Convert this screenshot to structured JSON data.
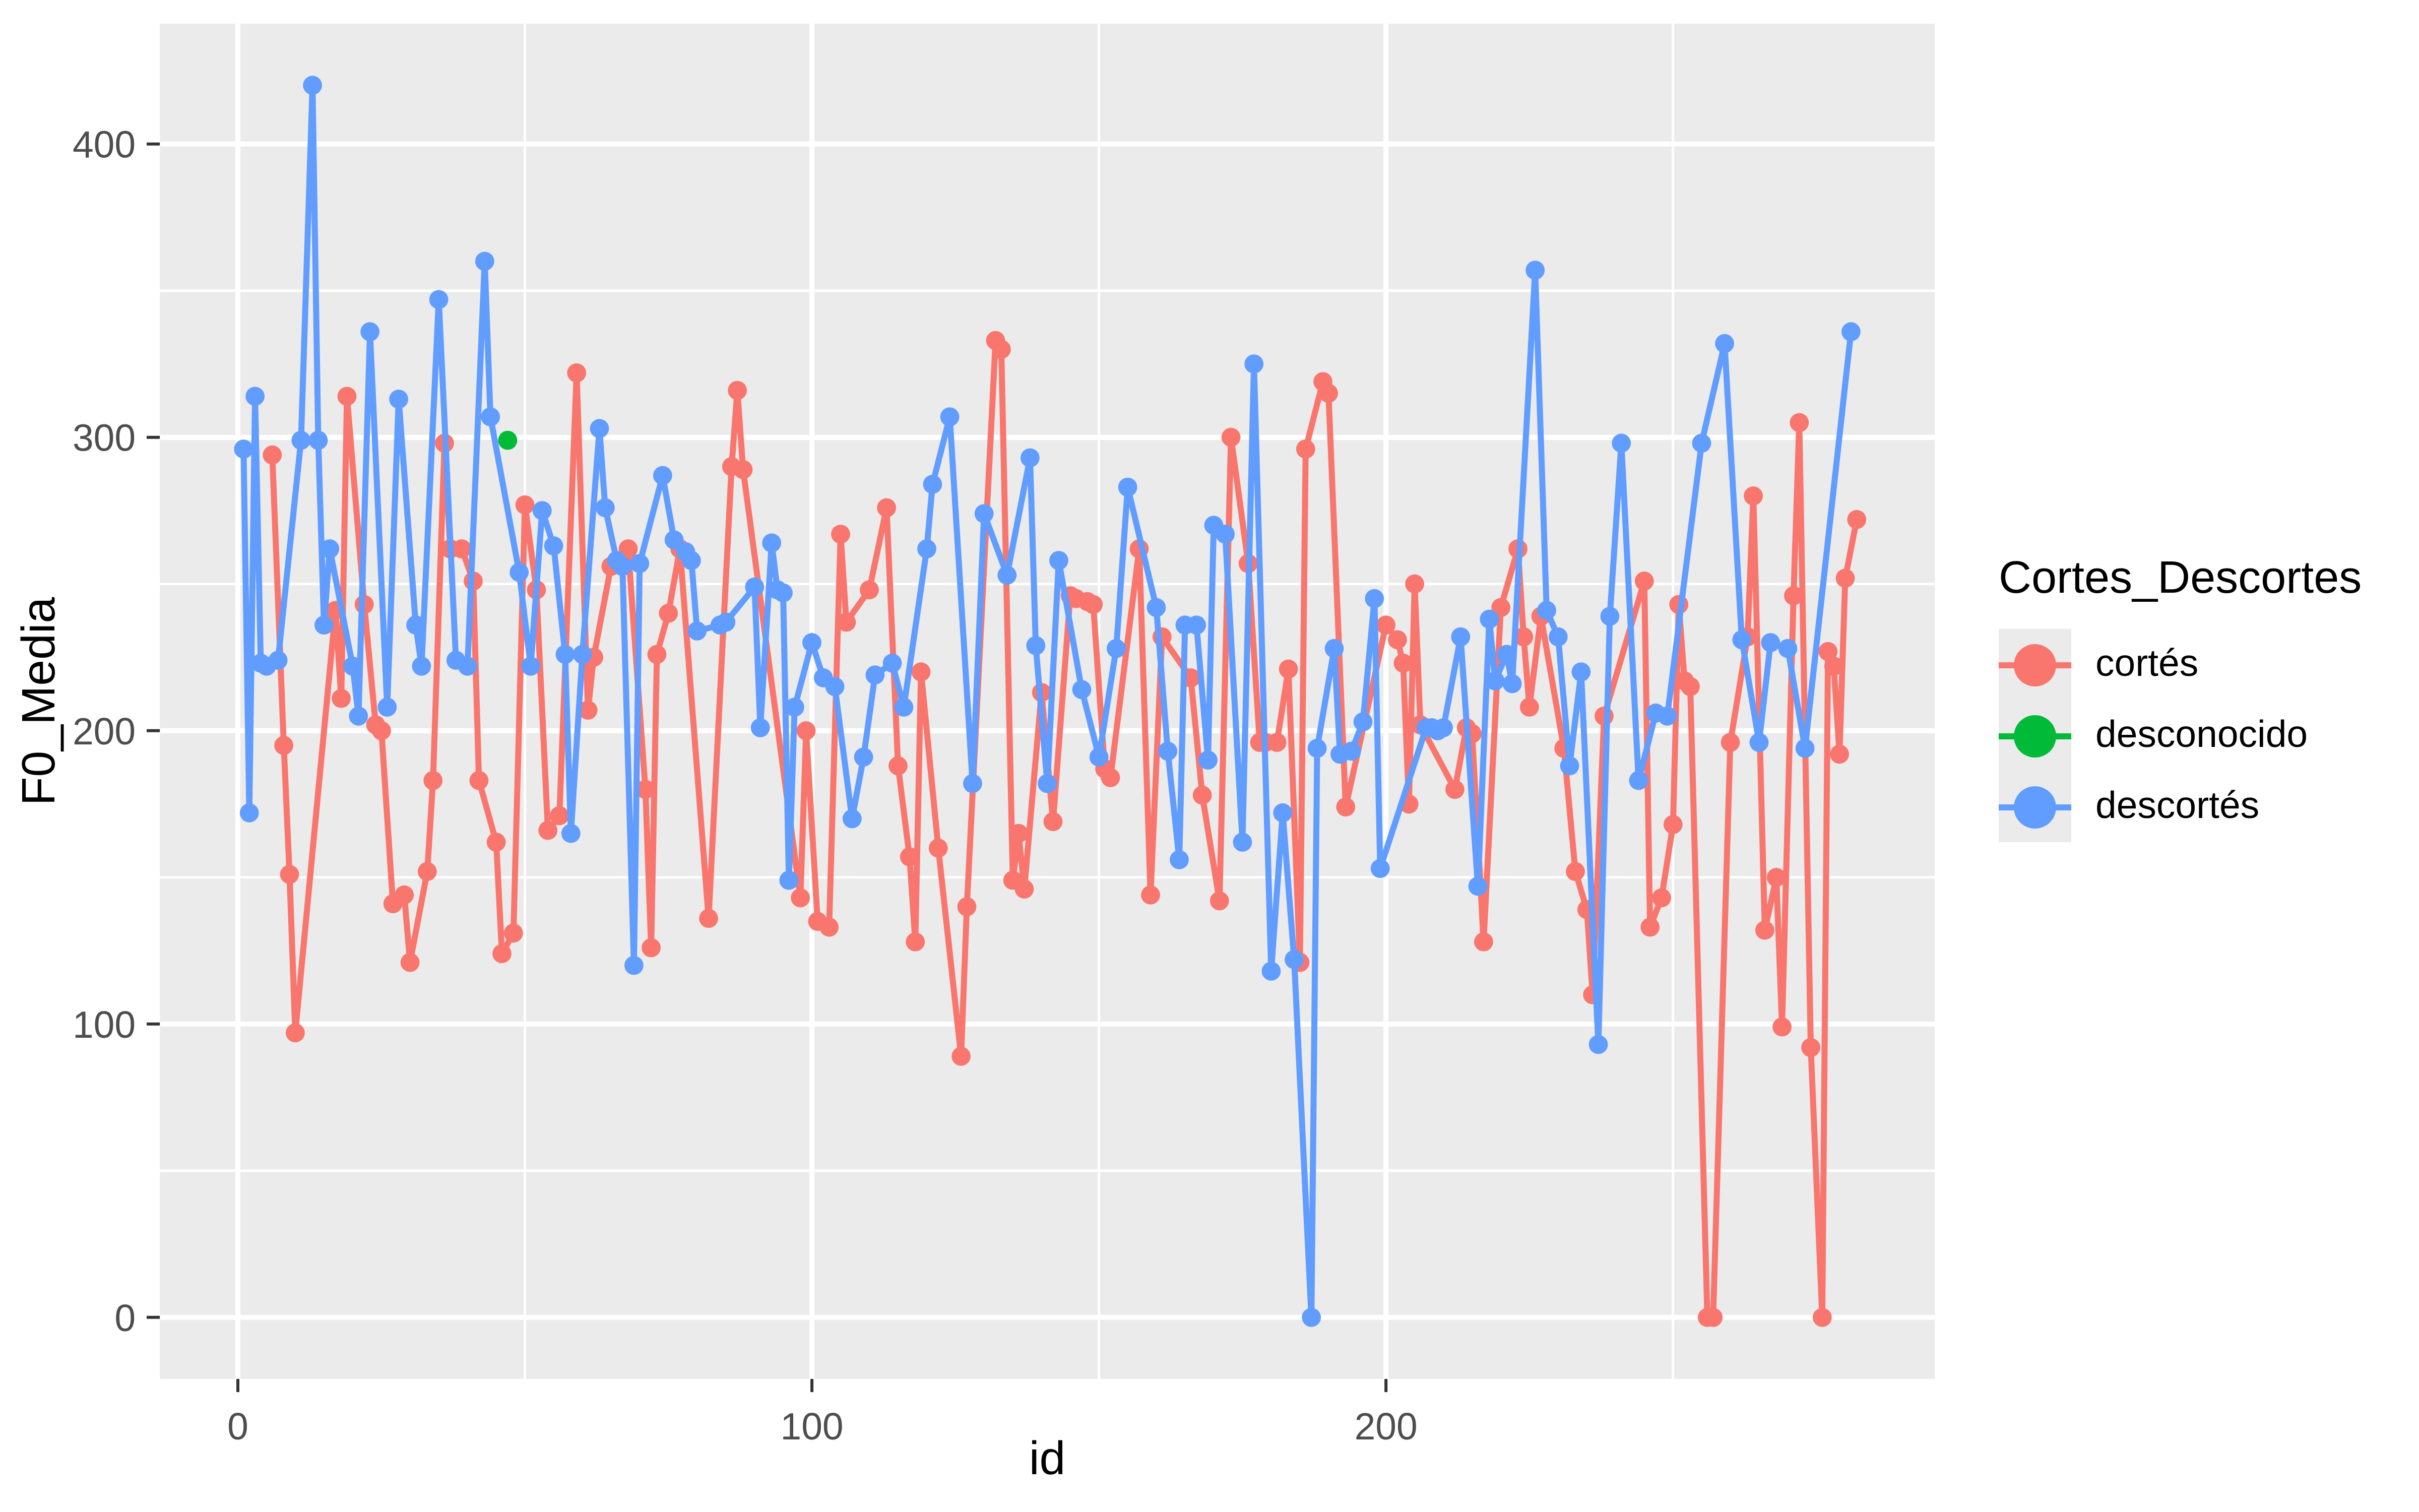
{
  "figure": {
    "background": "#FFFFFF",
    "panel_background": "#EBEBEB",
    "grid_color": "#FFFFFF",
    "tick_label_color": "#4D4D4D",
    "axis_title_color": "#000000"
  },
  "legend": {
    "title": "Cortes_Descortes",
    "entries": [
      {
        "label": "cortés",
        "color": "#F8766D"
      },
      {
        "label": "desconocido",
        "color": "#00BA38"
      },
      {
        "label": "descortés",
        "color": "#619CFF"
      }
    ]
  },
  "chart_data": {
    "type": "line",
    "title": "",
    "xlabel": "id",
    "ylabel": "F0_Media",
    "x_ticks": [
      0,
      100,
      200
    ],
    "y_ticks": [
      0,
      100,
      200,
      300,
      400
    ],
    "x_minor_ticks": [
      50,
      150,
      250
    ],
    "y_minor_ticks": [
      50,
      150,
      250,
      350
    ],
    "xlim": [
      -13.6,
      295.6
    ],
    "ylim": [
      -21,
      441
    ],
    "grid": true,
    "legend_position": "right",
    "legend_title": "Cortes_Descortes",
    "series": [
      {
        "name": "cortés",
        "color": "#F8766D",
        "points": [
          [
            6,
            294
          ],
          [
            8,
            195
          ],
          [
            9,
            151
          ],
          [
            10,
            97
          ],
          [
            17,
            241
          ],
          [
            18,
            211
          ],
          [
            19,
            314
          ],
          [
            22,
            243
          ],
          [
            24,
            202
          ],
          [
            25,
            200
          ],
          [
            27,
            141
          ],
          [
            29,
            144
          ],
          [
            30,
            121
          ],
          [
            33,
            152
          ],
          [
            34,
            183
          ],
          [
            36,
            298
          ],
          [
            37,
            262
          ],
          [
            39,
            262
          ],
          [
            41,
            251
          ],
          [
            42,
            183
          ],
          [
            45,
            162
          ],
          [
            46,
            124
          ],
          [
            48,
            131
          ],
          [
            50,
            277
          ],
          [
            52,
            248
          ],
          [
            54,
            166
          ],
          [
            56,
            171
          ],
          [
            59,
            322
          ],
          [
            61,
            207
          ],
          [
            62,
            225
          ],
          [
            65,
            256
          ],
          [
            68,
            262
          ],
          [
            71,
            180
          ],
          [
            72,
            126
          ],
          [
            73,
            226
          ],
          [
            75,
            240
          ],
          [
            77,
            262
          ],
          [
            82,
            136
          ],
          [
            86,
            290
          ],
          [
            87,
            316
          ],
          [
            88,
            289
          ],
          [
            98,
            143
          ],
          [
            99,
            200
          ],
          [
            101,
            135
          ],
          [
            103,
            133
          ],
          [
            105,
            267
          ],
          [
            106,
            237
          ],
          [
            110,
            248
          ],
          [
            113,
            276
          ],
          [
            115,
            188
          ],
          [
            117,
            157
          ],
          [
            118,
            128
          ],
          [
            119,
            220
          ],
          [
            122,
            160
          ],
          [
            126,
            89
          ],
          [
            127,
            140
          ],
          [
            132,
            333
          ],
          [
            133,
            330
          ],
          [
            135,
            149
          ],
          [
            136,
            165
          ],
          [
            137,
            146
          ],
          [
            140,
            213
          ],
          [
            142,
            169
          ],
          [
            145,
            246
          ],
          [
            146,
            245
          ],
          [
            148,
            244
          ],
          [
            149,
            243
          ],
          [
            151,
            187
          ],
          [
            152,
            184
          ],
          [
            157,
            262
          ],
          [
            159,
            144
          ],
          [
            161,
            232
          ],
          [
            166,
            218
          ],
          [
            168,
            178
          ],
          [
            171,
            142
          ],
          [
            173,
            300
          ],
          [
            176,
            257
          ],
          [
            178,
            196
          ],
          [
            179,
            196
          ],
          [
            181,
            196
          ],
          [
            183,
            221
          ],
          [
            185,
            121
          ],
          [
            186,
            296
          ],
          [
            189,
            319
          ],
          [
            190,
            315
          ],
          [
            193,
            174
          ],
          [
            200,
            236
          ],
          [
            202,
            231
          ],
          [
            203,
            223
          ],
          [
            204,
            175
          ],
          [
            205,
            250
          ],
          [
            206,
            202
          ],
          [
            212,
            180
          ],
          [
            214,
            201
          ],
          [
            215,
            199
          ],
          [
            217,
            128
          ],
          [
            220,
            242
          ],
          [
            223,
            262
          ],
          [
            224,
            232
          ],
          [
            225,
            208
          ],
          [
            227,
            239
          ],
          [
            231,
            194
          ],
          [
            233,
            152
          ],
          [
            235,
            139
          ],
          [
            236,
            110
          ],
          [
            238,
            205
          ],
          [
            245,
            251
          ],
          [
            246,
            133
          ],
          [
            248,
            143
          ],
          [
            250,
            168
          ],
          [
            251,
            243
          ],
          [
            252,
            217
          ],
          [
            253,
            215
          ],
          [
            256,
            0
          ],
          [
            257,
            0
          ],
          [
            260,
            196
          ],
          [
            263,
            232
          ],
          [
            264,
            280
          ],
          [
            266,
            132
          ],
          [
            268,
            150
          ],
          [
            269,
            99
          ],
          [
            271,
            246
          ],
          [
            272,
            305
          ],
          [
            274,
            92
          ],
          [
            276,
            0
          ],
          [
            277,
            227
          ],
          [
            278,
            222
          ],
          [
            279,
            192
          ],
          [
            280,
            252
          ],
          [
            282,
            272
          ]
        ]
      },
      {
        "name": "desconocido",
        "color": "#00BA38",
        "points": [
          [
            47,
            299
          ]
        ]
      },
      {
        "name": "descortés",
        "color": "#619CFF",
        "points": [
          [
            1,
            296
          ],
          [
            2,
            172
          ],
          [
            3,
            314
          ],
          [
            4,
            223
          ],
          [
            5,
            222
          ],
          [
            7,
            224
          ],
          [
            11,
            299
          ],
          [
            13,
            420
          ],
          [
            14,
            299
          ],
          [
            15,
            236
          ],
          [
            16,
            262
          ],
          [
            20,
            222
          ],
          [
            21,
            205
          ],
          [
            23,
            336
          ],
          [
            26,
            208
          ],
          [
            28,
            313
          ],
          [
            31,
            236
          ],
          [
            32,
            222
          ],
          [
            35,
            347
          ],
          [
            38,
            224
          ],
          [
            40,
            222
          ],
          [
            43,
            360
          ],
          [
            44,
            307
          ],
          [
            49,
            254
          ],
          [
            51,
            222
          ],
          [
            53,
            275
          ],
          [
            55,
            263
          ],
          [
            57,
            226
          ],
          [
            58,
            165
          ],
          [
            60,
            226
          ],
          [
            63,
            303
          ],
          [
            64,
            276
          ],
          [
            66,
            258
          ],
          [
            67,
            256
          ],
          [
            69,
            120
          ],
          [
            70,
            257
          ],
          [
            74,
            287
          ],
          [
            76,
            265
          ],
          [
            78,
            261
          ],
          [
            79,
            258
          ],
          [
            80,
            234
          ],
          [
            84,
            236
          ],
          [
            85,
            237
          ],
          [
            90,
            249
          ],
          [
            91,
            201
          ],
          [
            93,
            264
          ],
          [
            94,
            248
          ],
          [
            95,
            247
          ],
          [
            96,
            149
          ],
          [
            97,
            208
          ],
          [
            100,
            230
          ],
          [
            102,
            218
          ],
          [
            104,
            215
          ],
          [
            107,
            170
          ],
          [
            109,
            191
          ],
          [
            111,
            219
          ],
          [
            114,
            223
          ],
          [
            116,
            208
          ],
          [
            120,
            262
          ],
          [
            121,
            284
          ],
          [
            124,
            307
          ],
          [
            128,
            182
          ],
          [
            130,
            274
          ],
          [
            134,
            253
          ],
          [
            138,
            293
          ],
          [
            139,
            229
          ],
          [
            141,
            182
          ],
          [
            143,
            258
          ],
          [
            147,
            214
          ],
          [
            150,
            191
          ],
          [
            153,
            228
          ],
          [
            155,
            283
          ],
          [
            160,
            242
          ],
          [
            162,
            193
          ],
          [
            164,
            156
          ],
          [
            165,
            236
          ],
          [
            167,
            236
          ],
          [
            169,
            190
          ],
          [
            170,
            270
          ],
          [
            172,
            267
          ],
          [
            175,
            162
          ],
          [
            177,
            325
          ],
          [
            180,
            118
          ],
          [
            182,
            172
          ],
          [
            184,
            122
          ],
          [
            187,
            0
          ],
          [
            188,
            194
          ],
          [
            191,
            228
          ],
          [
            192,
            192
          ],
          [
            194,
            193
          ],
          [
            196,
            203
          ],
          [
            198,
            245
          ],
          [
            199,
            153
          ],
          [
            207,
            201
          ],
          [
            208,
            201
          ],
          [
            209,
            200
          ],
          [
            210,
            201
          ],
          [
            213,
            232
          ],
          [
            216,
            147
          ],
          [
            218,
            238
          ],
          [
            219,
            217
          ],
          [
            221,
            226
          ],
          [
            222,
            216
          ],
          [
            226,
            357
          ],
          [
            228,
            241
          ],
          [
            230,
            232
          ],
          [
            232,
            188
          ],
          [
            234,
            220
          ],
          [
            237,
            93
          ],
          [
            239,
            239
          ],
          [
            241,
            298
          ],
          [
            244,
            183
          ],
          [
            247,
            206
          ],
          [
            249,
            205
          ],
          [
            255,
            298
          ],
          [
            259,
            332
          ],
          [
            262,
            231
          ],
          [
            265,
            196
          ],
          [
            267,
            230
          ],
          [
            270,
            228
          ],
          [
            273,
            194
          ],
          [
            281,
            336
          ]
        ]
      }
    ]
  }
}
